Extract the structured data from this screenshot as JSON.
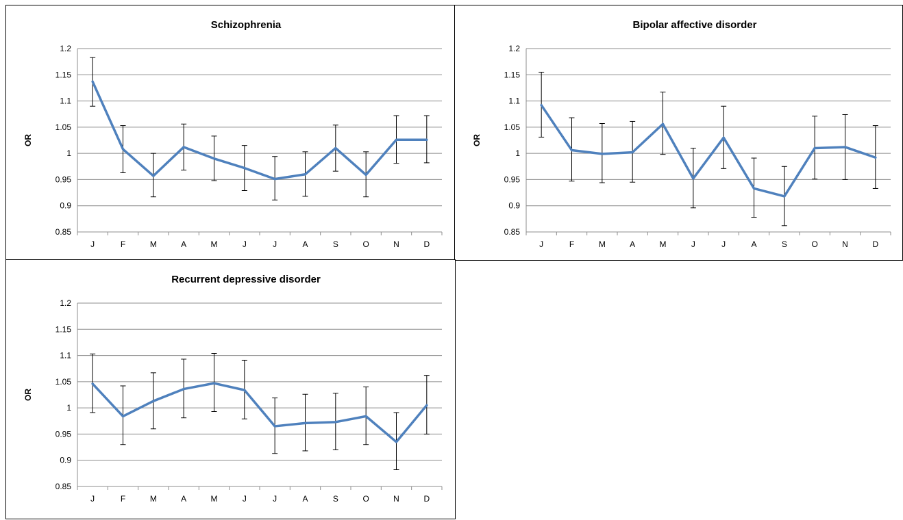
{
  "chart_data": [
    {
      "type": "line",
      "title": "Schizophrenia",
      "xlabel": "",
      "ylabel": "OR",
      "ylim": [
        0.85,
        1.2
      ],
      "yticks": [
        "0.85",
        "0.9",
        "0.95",
        "1",
        "1.05",
        "1.1",
        "1.15",
        "1.2"
      ],
      "categories": [
        "J",
        "F",
        "M",
        "A",
        "M",
        "J",
        "J",
        "A",
        "S",
        "O",
        "N",
        "D"
      ],
      "grid": true,
      "color": "#4f81bd",
      "series": [
        {
          "values": [
            1.137,
            1.008,
            0.957,
            1.012,
            0.99,
            0.972,
            0.951,
            0.96,
            1.01,
            0.959,
            1.026,
            1.026
          ],
          "lower": [
            1.09,
            0.963,
            0.917,
            0.968,
            0.948,
            0.929,
            0.911,
            0.918,
            0.966,
            0.917,
            0.981,
            0.982
          ],
          "upper": [
            1.183,
            1.053,
            1.0,
            1.056,
            1.033,
            1.015,
            0.994,
            1.003,
            1.054,
            1.003,
            1.072,
            1.072
          ]
        }
      ]
    },
    {
      "type": "line",
      "title": "Bipolar affective disorder",
      "xlabel": "",
      "ylabel": "OR",
      "ylim": [
        0.85,
        1.2
      ],
      "yticks": [
        "0.85",
        "0.9",
        "0.95",
        "1",
        "1.05",
        "1.1",
        "1.15",
        "1.2"
      ],
      "categories": [
        "J",
        "F",
        "M",
        "A",
        "M",
        "J",
        "J",
        "A",
        "S",
        "O",
        "N",
        "D"
      ],
      "grid": true,
      "color": "#4f81bd",
      "series": [
        {
          "values": [
            1.092,
            1.006,
            0.999,
            1.002,
            1.056,
            0.952,
            1.03,
            0.933,
            0.918,
            1.01,
            1.012,
            0.992
          ],
          "lower": [
            1.031,
            0.947,
            0.944,
            0.945,
            0.998,
            0.896,
            0.971,
            0.878,
            0.862,
            0.951,
            0.95,
            0.933
          ],
          "upper": [
            1.155,
            1.068,
            1.057,
            1.061,
            1.117,
            1.01,
            1.09,
            0.991,
            0.975,
            1.071,
            1.074,
            1.053
          ]
        }
      ]
    },
    {
      "type": "line",
      "title": "Recurrent depressive disorder",
      "xlabel": "",
      "ylabel": "OR",
      "ylim": [
        0.85,
        1.2
      ],
      "yticks": [
        "0.85",
        "0.9",
        "0.95",
        "1",
        "1.05",
        "1.1",
        "1.15",
        "1.2"
      ],
      "categories": [
        "J",
        "F",
        "M",
        "A",
        "M",
        "J",
        "J",
        "A",
        "S",
        "O",
        "N",
        "D"
      ],
      "grid": true,
      "color": "#4f81bd",
      "series": [
        {
          "values": [
            1.046,
            0.984,
            1.013,
            1.036,
            1.047,
            1.034,
            0.965,
            0.971,
            0.973,
            0.984,
            0.935,
            1.005
          ],
          "lower": [
            0.991,
            0.93,
            0.96,
            0.981,
            0.993,
            0.979,
            0.913,
            0.918,
            0.92,
            0.93,
            0.882,
            0.95
          ],
          "upper": [
            1.103,
            1.042,
            1.067,
            1.093,
            1.104,
            1.091,
            1.019,
            1.026,
            1.028,
            1.04,
            0.991,
            1.062
          ]
        }
      ]
    }
  ]
}
